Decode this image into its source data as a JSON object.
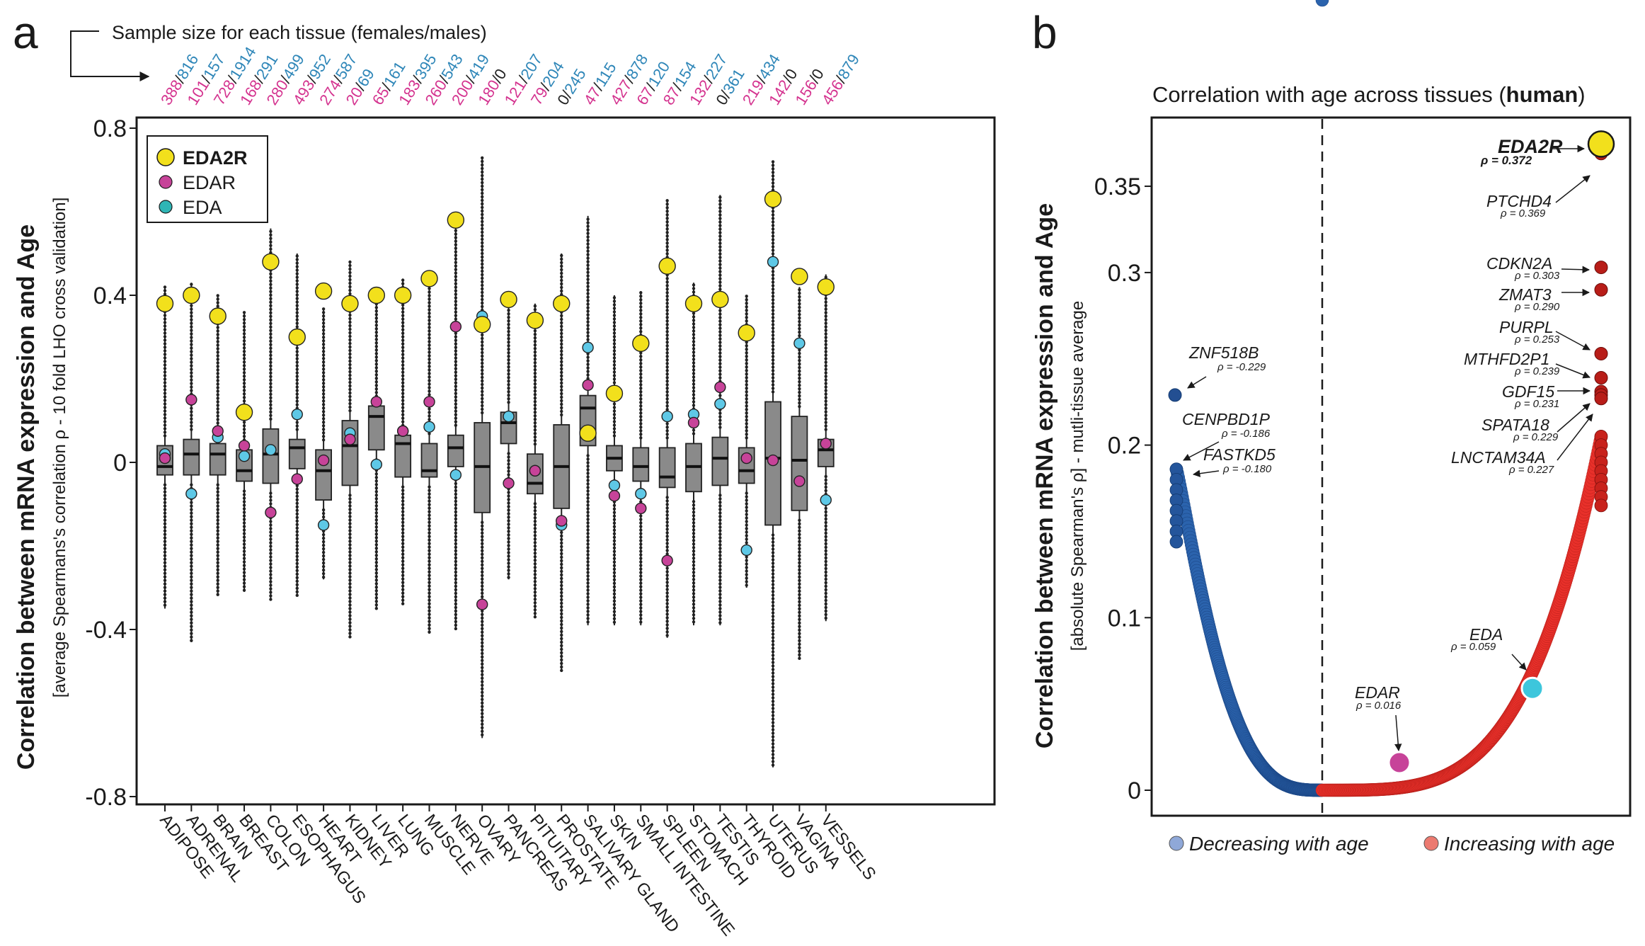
{
  "colors": {
    "eda2r": "#f2e01c",
    "edar": "#c74399",
    "eda": "#5ec8e6",
    "female_count": "#d4338f",
    "male_count": "#2e86b8",
    "zero_count": "#222222",
    "box_fill": "#8a8a8a",
    "decreasing": "#2b63ad",
    "increasing": "#e8302a"
  },
  "panel_a": {
    "letter": "a",
    "sample_size_label": "Sample size for each tissue (females/males)",
    "y_title": "Correlation between mRNA expression and Age",
    "y_subtitle": "[average Spearmans's correlation ρ - 10 fold LHO cross validation]",
    "legend": [
      {
        "label": "EDA2R",
        "key": "eda2r",
        "bold": true
      },
      {
        "label": "EDAR",
        "key": "edar",
        "bold": false
      },
      {
        "label": "EDA",
        "key": "eda",
        "bold": false
      }
    ]
  },
  "panel_b": {
    "letter": "b",
    "title_prefix": "Correlation with age across tissues  (",
    "title_bold": "human",
    "title_suffix": ")",
    "y_title": "Correlation between mRNA expression and Age",
    "y_subtitle": "[absolute Spearman's ρ] - mutli-tissue average",
    "legend_decreasing": "Decreasing with age",
    "legend_increasing": "Increasing with age"
  },
  "chart_data": [
    {
      "type": "box",
      "ylim": [
        -0.8,
        0.8
      ],
      "yticks": [
        "0.8",
        "0.4",
        "0",
        "-0.4",
        "-0.8"
      ],
      "grid": false,
      "legend_position": "top-left",
      "categories": [
        "ADIPOSE",
        "ADRENAL",
        "BRAIN",
        "BREAST",
        "COLON",
        "ESOPHAGUS",
        "HEART",
        "KIDNEY",
        "LIVER",
        "LUNG",
        "MUSCLE",
        "NERVE",
        "OVARY",
        "PANCREAS",
        "PITUITARY",
        "PROSTATE",
        "SALIVARY GLAND",
        "SKIN",
        "SMALL INTESTINE",
        "SPLEEN",
        "STOMACH",
        "TESTIS",
        "THYROID",
        "UTERUS",
        "VAGINA",
        "VESSELS"
      ],
      "sample_sizes": [
        {
          "f": "388",
          "m": "816"
        },
        {
          "f": "101",
          "m": "157"
        },
        {
          "f": "728",
          "m": "1914"
        },
        {
          "f": "168",
          "m": "291"
        },
        {
          "f": "280",
          "m": "499"
        },
        {
          "f": "493",
          "m": "952"
        },
        {
          "f": "274",
          "m": "587"
        },
        {
          "f": "20",
          "m": "69"
        },
        {
          "f": "65",
          "m": "161"
        },
        {
          "f": "183",
          "m": "395"
        },
        {
          "f": "260",
          "m": "543"
        },
        {
          "f": "200",
          "m": "419"
        },
        {
          "f": "180",
          "m": "0"
        },
        {
          "f": "121",
          "m": "207"
        },
        {
          "f": "79",
          "m": "204"
        },
        {
          "f": "0",
          "m": "245"
        },
        {
          "f": "47",
          "m": "115"
        },
        {
          "f": "427",
          "m": "878"
        },
        {
          "f": "67",
          "m": "120"
        },
        {
          "f": "87",
          "m": "154"
        },
        {
          "f": "132",
          "m": "227"
        },
        {
          "f": "0",
          "m": "361"
        },
        {
          "f": "219",
          "m": "434"
        },
        {
          "f": "142",
          "m": "0"
        },
        {
          "f": "156",
          "m": "0"
        },
        {
          "f": "456",
          "m": "879"
        }
      ],
      "boxes": [
        {
          "q1": -0.03,
          "med": -0.01,
          "q3": 0.04,
          "wlo": -0.35,
          "whi": 0.42
        },
        {
          "q1": -0.03,
          "med": 0.02,
          "q3": 0.055,
          "wlo": -0.43,
          "whi": 0.43
        },
        {
          "q1": -0.03,
          "med": 0.02,
          "q3": 0.045,
          "wlo": -0.32,
          "whi": 0.4
        },
        {
          "q1": -0.045,
          "med": -0.02,
          "q3": 0.03,
          "wlo": -0.31,
          "whi": 0.36
        },
        {
          "q1": -0.05,
          "med": 0.02,
          "q3": 0.08,
          "wlo": -0.33,
          "whi": 0.56
        },
        {
          "q1": -0.015,
          "med": 0.035,
          "q3": 0.055,
          "wlo": -0.32,
          "whi": 0.5
        },
        {
          "q1": -0.09,
          "med": -0.02,
          "q3": 0.03,
          "wlo": -0.28,
          "whi": 0.37
        },
        {
          "q1": -0.055,
          "med": 0.04,
          "q3": 0.1,
          "wlo": -0.42,
          "whi": 0.48
        },
        {
          "q1": 0.03,
          "med": 0.11,
          "q3": 0.135,
          "wlo": -0.35,
          "whi": 0.42
        },
        {
          "q1": -0.035,
          "med": 0.045,
          "q3": 0.065,
          "wlo": -0.34,
          "whi": 0.44
        },
        {
          "q1": -0.035,
          "med": -0.02,
          "q3": 0.045,
          "wlo": -0.41,
          "whi": 0.45
        },
        {
          "q1": -0.01,
          "med": 0.035,
          "q3": 0.065,
          "wlo": -0.4,
          "whi": 0.58
        },
        {
          "q1": -0.12,
          "med": -0.01,
          "q3": 0.095,
          "wlo": -0.66,
          "whi": 0.73
        },
        {
          "q1": 0.045,
          "med": 0.095,
          "q3": 0.12,
          "wlo": -0.28,
          "whi": 0.4
        },
        {
          "q1": -0.075,
          "med": -0.05,
          "q3": 0.02,
          "wlo": -0.37,
          "whi": 0.38
        },
        {
          "q1": -0.11,
          "med": -0.01,
          "q3": 0.09,
          "wlo": -0.5,
          "whi": 0.5
        },
        {
          "q1": 0.04,
          "med": 0.13,
          "q3": 0.16,
          "wlo": -0.39,
          "whi": 0.59
        },
        {
          "q1": -0.02,
          "med": 0.01,
          "q3": 0.04,
          "wlo": -0.39,
          "whi": 0.4
        },
        {
          "q1": -0.045,
          "med": -0.01,
          "q3": 0.035,
          "wlo": -0.39,
          "whi": 0.41
        },
        {
          "q1": -0.06,
          "med": -0.035,
          "q3": 0.035,
          "wlo": -0.42,
          "whi": 0.63
        },
        {
          "q1": -0.07,
          "med": -0.01,
          "q3": 0.045,
          "wlo": -0.39,
          "whi": 0.43
        },
        {
          "q1": -0.055,
          "med": 0.01,
          "q3": 0.06,
          "wlo": -0.39,
          "whi": 0.64
        },
        {
          "q1": -0.05,
          "med": -0.02,
          "q3": 0.035,
          "wlo": -0.3,
          "whi": 0.4
        },
        {
          "q1": -0.15,
          "med": 0.01,
          "q3": 0.145,
          "wlo": -0.73,
          "whi": 0.72
        },
        {
          "q1": -0.115,
          "med": 0.005,
          "q3": 0.11,
          "wlo": -0.47,
          "whi": 0.42
        },
        {
          "q1": -0.01,
          "med": 0.03,
          "q3": 0.055,
          "wlo": -0.38,
          "whi": 0.45
        }
      ],
      "series": [
        {
          "name": "EDA2R",
          "values": [
            0.38,
            0.4,
            0.35,
            0.12,
            0.48,
            0.3,
            0.41,
            0.38,
            0.4,
            0.4,
            0.44,
            0.58,
            0.33,
            0.39,
            0.34,
            0.38,
            0.07,
            0.165,
            0.285,
            0.47,
            0.38,
            0.39,
            0.31,
            0.63,
            0.445,
            0.42
          ]
        },
        {
          "name": "EDAR",
          "values": [
            0.01,
            0.15,
            0.075,
            0.04,
            -0.12,
            -0.04,
            0.005,
            0.055,
            0.145,
            0.075,
            0.145,
            0.325,
            -0.34,
            -0.05,
            -0.02,
            -0.14,
            0.185,
            -0.08,
            -0.11,
            -0.235,
            0.095,
            0.18,
            0.01,
            0.005,
            -0.045,
            0.045
          ]
        },
        {
          "name": "EDA",
          "values": [
            0.02,
            -0.075,
            0.06,
            0.015,
            0.03,
            0.115,
            -0.15,
            0.07,
            -0.005,
            0.075,
            0.085,
            -0.03,
            0.35,
            0.11,
            -0.02,
            -0.15,
            0.275,
            -0.055,
            -0.075,
            0.11,
            0.115,
            0.14,
            -0.21,
            0.48,
            0.285,
            -0.09
          ]
        }
      ]
    },
    {
      "type": "scatter",
      "ylim": [
        0,
        0.38
      ],
      "yticks": [
        "0.35",
        "0.3",
        "0.2",
        "0.1",
        "0"
      ],
      "grid": false,
      "series": [
        {
          "name": "Decreasing with age",
          "peak": 0.229,
          "second": 0.186
        },
        {
          "name": "Increasing with age",
          "peak": 0.372,
          "second": 0.369
        }
      ],
      "annotations": [
        {
          "gene": "ZNF518B",
          "rho": "ρ = -0.229",
          "value": 0.229,
          "side": "left"
        },
        {
          "gene": "CENPBD1P",
          "rho": "ρ = -0.186",
          "value": 0.186,
          "side": "left"
        },
        {
          "gene": "FASTKD5",
          "rho": "ρ = -0.180",
          "value": 0.18,
          "side": "left"
        },
        {
          "gene": "EDA2R",
          "rho": "ρ = 0.372",
          "value": 0.372,
          "side": "right",
          "bold": true
        },
        {
          "gene": "PTCHD4",
          "rho": "ρ = 0.369",
          "value": 0.369,
          "side": "right"
        },
        {
          "gene": "CDKN2A",
          "rho": "ρ = 0.303",
          "value": 0.303,
          "side": "right"
        },
        {
          "gene": "ZMAT3",
          "rho": "ρ = 0.290",
          "value": 0.29,
          "side": "right"
        },
        {
          "gene": "PURPL",
          "rho": "ρ = 0.253",
          "value": 0.253,
          "side": "right"
        },
        {
          "gene": "MTHFD2P1",
          "rho": "ρ = 0.239",
          "value": 0.239,
          "side": "right"
        },
        {
          "gene": "GDF15",
          "rho": "ρ = 0.231",
          "value": 0.231,
          "side": "right"
        },
        {
          "gene": "SPATA18",
          "rho": "ρ = 0.229",
          "value": 0.229,
          "side": "right"
        },
        {
          "gene": "LNCTAM34A",
          "rho": "ρ = 0.227",
          "value": 0.227,
          "side": "right"
        },
        {
          "gene": "EDA",
          "rho": "ρ = 0.059",
          "value": 0.059,
          "side": "curve"
        },
        {
          "gene": "EDAR",
          "rho": "ρ = 0.016",
          "value": 0.016,
          "side": "curve"
        }
      ]
    }
  ]
}
